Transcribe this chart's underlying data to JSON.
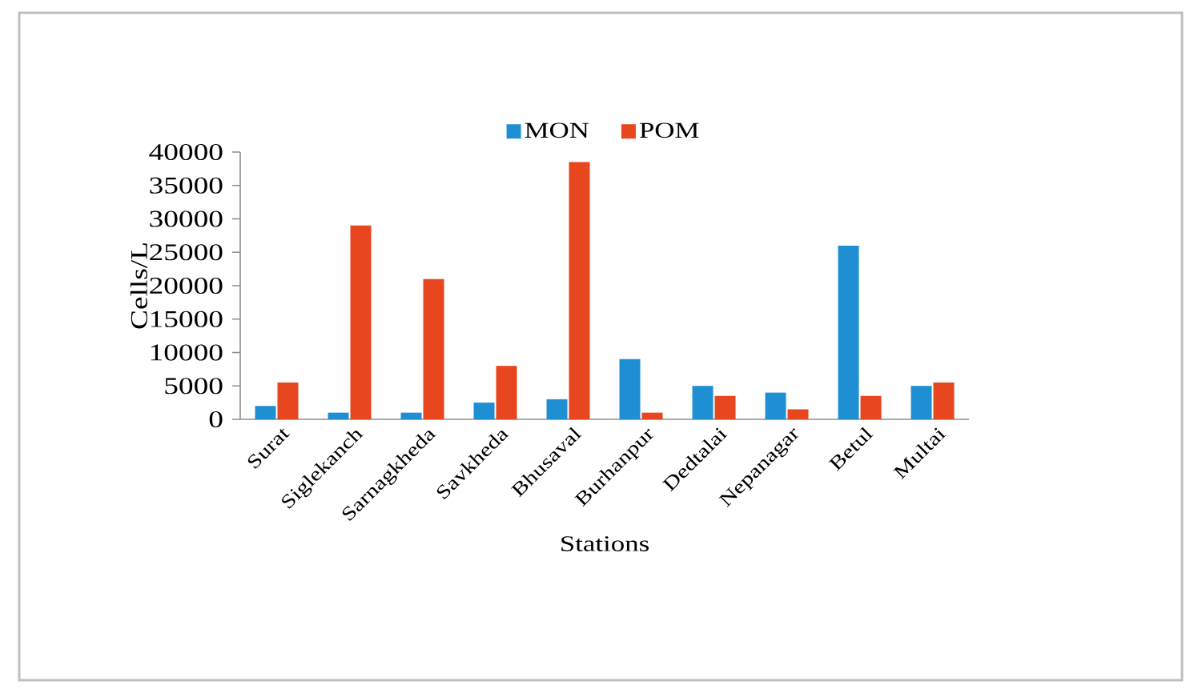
{
  "chart_data": {
    "type": "bar",
    "xlabel": "Stations",
    "ylabel": "Cells/L",
    "categories": [
      "Surat",
      "Siglekanch",
      "Sarnagkheda",
      "Savkheda",
      "Bhusaval",
      "Burhanpur",
      "Dedtalai",
      "Nepanagar",
      "Betul",
      "Multai"
    ],
    "series": [
      {
        "name": "MON",
        "color": "#1f8fd4",
        "values": [
          2000,
          1000,
          1000,
          2500,
          3000,
          9000,
          5000,
          4000,
          26000,
          5000
        ]
      },
      {
        "name": "POM",
        "color": "#e8461e",
        "values": [
          5500,
          29000,
          21000,
          8000,
          38500,
          1000,
          3500,
          1500,
          3500,
          5500
        ]
      }
    ],
    "ylim": [
      0,
      40000
    ],
    "yticks": [
      0,
      5000,
      10000,
      15000,
      20000,
      25000,
      30000,
      35000,
      40000
    ],
    "legend": "top"
  }
}
